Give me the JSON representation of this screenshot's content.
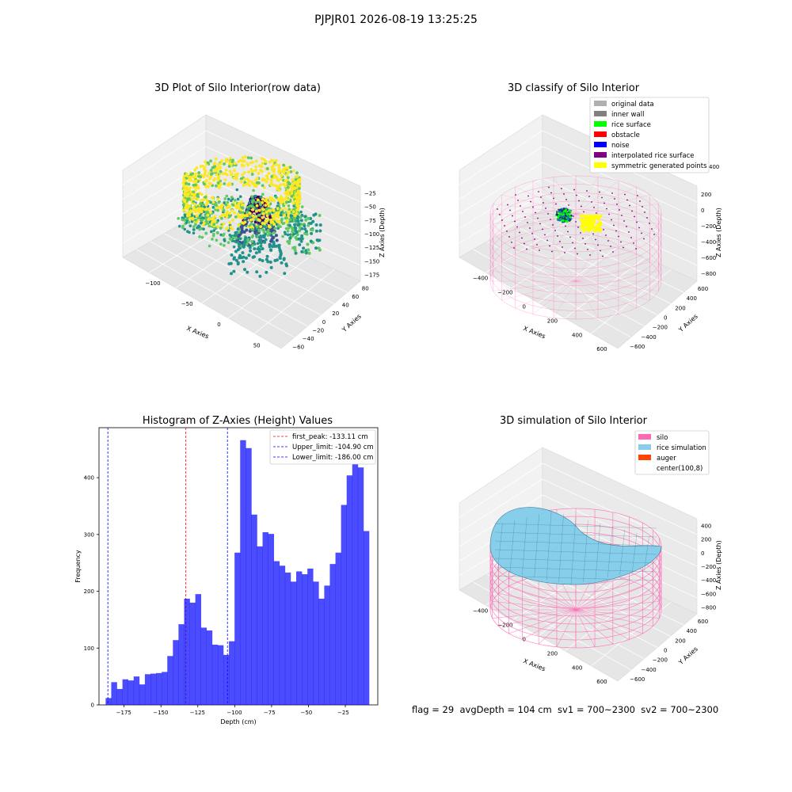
{
  "suptitle": "PJPJR01 2026-08-19 13:25:25",
  "footer": "flag = 29  avgDepth = 104 cm  sv1 = 700~2300  sv2 = 700~2300",
  "colors": {
    "viridis": [
      "#440154",
      "#3b528b",
      "#21918c",
      "#5ec962",
      "#fde725"
    ],
    "silo_pink": "#ff69b4",
    "hist_blue": "#0000ff",
    "rice_sky": "#87ceeb",
    "auger": "#ff4500"
  },
  "chart_data": [
    {
      "type": "scatter3d",
      "title": "3D Plot of Silo Interior(row data)",
      "xlabel": "X Axies",
      "ylabel": "Y Axies",
      "zlabel": "Z Axies (Depth)",
      "xticks": [
        "−100",
        "−50",
        "0",
        "50"
      ],
      "yticks": [
        "−60",
        "−40",
        "−20",
        "0",
        "20",
        "40",
        "60",
        "80"
      ],
      "zticks": [
        "−25",
        "−50",
        "−75",
        "−100",
        "−125",
        "−150",
        "−175"
      ],
      "xlim": [
        -130,
        90
      ],
      "ylim": [
        -65,
        90
      ],
      "zlim": [
        -190,
        -10
      ],
      "colormap": "viridis"
    },
    {
      "type": "scatter3d",
      "title": "3D classify of Silo Interior",
      "xlabel": "X Axies",
      "ylabel": "Y Axies",
      "zlabel": "Z Axies (Depth)",
      "xticks": [
        "−400",
        "−200",
        "0",
        "200",
        "400",
        "600"
      ],
      "yticks": [
        "−600",
        "−400",
        "−200",
        "0",
        "200",
        "400",
        "600"
      ],
      "zticks": [
        "200",
        "0",
        "−200",
        "−400",
        "−600",
        "−800"
      ],
      "zticks_top": "400",
      "legend": [
        {
          "label": "original data",
          "color": "#b0b0b0"
        },
        {
          "label": "inner wall",
          "color": "#808080"
        },
        {
          "label": "rice surface",
          "color": "#00ff00"
        },
        {
          "label": "obstacle",
          "color": "#ff0000"
        },
        {
          "label": "noise",
          "color": "#0000ff"
        },
        {
          "label": "interpolated rice surface",
          "color": "#800080"
        },
        {
          "label": "symmetric generated points",
          "color": "#ffff00"
        }
      ]
    },
    {
      "type": "bar",
      "title": "Histogram of Z-Axies (Height) Values",
      "xlabel": "Depth (cm)",
      "ylabel": "Frequency",
      "xlim": [
        -192,
        -3
      ],
      "ylim": [
        0,
        488
      ],
      "xticks": [
        -175,
        -150,
        -125,
        -100,
        -75,
        -50,
        -25
      ],
      "yticks": [
        0,
        100,
        200,
        300,
        400
      ],
      "bin_start": -187.5,
      "bin_width": 3.8,
      "values": [
        12,
        40,
        28,
        45,
        43,
        50,
        36,
        54,
        55,
        56,
        58,
        86,
        114,
        142,
        187,
        180,
        195,
        136,
        131,
        106,
        105,
        88,
        112,
        268,
        466,
        452,
        335,
        279,
        304,
        301,
        253,
        245,
        233,
        217,
        235,
        230,
        240,
        217,
        187,
        210,
        248,
        268,
        352,
        404,
        450,
        418,
        306
      ],
      "bar_color": "#0000ff",
      "vlines": [
        {
          "label": "first_peak: -133.11 cm",
          "x": -133.11,
          "color": "#ff0000"
        },
        {
          "label": "Upper_limit: -104.90 cm",
          "x": -104.9,
          "color": "#0000ff"
        },
        {
          "label": "Lower_limit: -186.00 cm",
          "x": -186.0,
          "color": "#0000ff"
        }
      ],
      "legend_position": "upper right"
    },
    {
      "type": "surface3d",
      "title": "3D simulation of Silo Interior",
      "xlabel": "X Axies",
      "ylabel": "Y Axies",
      "zlabel": "Z Axies (Depth)",
      "xticks": [
        "−400",
        "−200",
        "0",
        "200",
        "400",
        "600"
      ],
      "yticks": [
        "−600",
        "−400",
        "−200",
        "0",
        "200",
        "400",
        "600"
      ],
      "zticks": [
        "400",
        "200",
        "0",
        "−200",
        "−400",
        "−600",
        "−800"
      ],
      "legend": [
        {
          "label": "silo",
          "color": "#ff69b4"
        },
        {
          "label": "rice simulation",
          "color": "#87ceeb"
        },
        {
          "label": "auger",
          "color": "#ff4500"
        },
        {
          "label": "center(100,8)",
          "color": "none"
        }
      ]
    }
  ]
}
